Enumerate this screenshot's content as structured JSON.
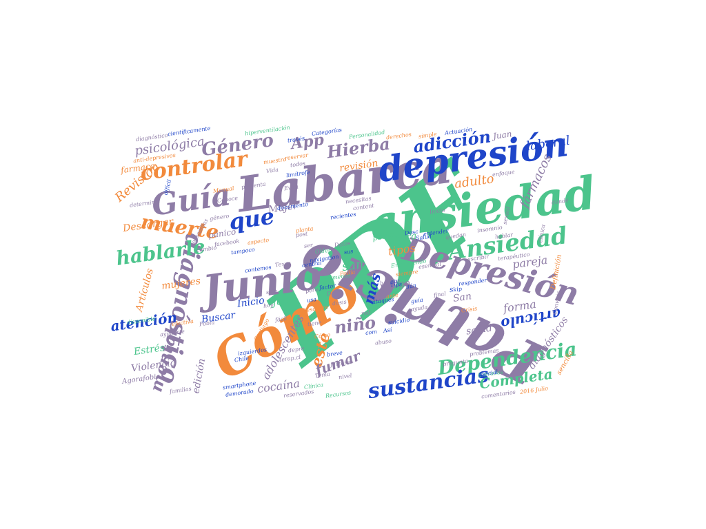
{
  "colors": {
    "purple": "#8E7CA6",
    "green": "#4CC48C",
    "orange": "#F28A3C",
    "blue": "#1F45C9"
  },
  "words": [
    {
      "text": "PDF",
      "color": "green"
    },
    {
      "text": "Labarca",
      "color": "purple"
    },
    {
      "text": "ansiedad",
      "color": "green"
    },
    {
      "text": "depresión",
      "color": "blue"
    },
    {
      "text": "Cómo",
      "color": "orange"
    },
    {
      "text": "Junio",
      "color": "purple"
    },
    {
      "text": "Patricio",
      "color": "purple"
    },
    {
      "text": "Guía",
      "color": "purple"
    },
    {
      "text": "Ansiedad",
      "color": "green"
    },
    {
      "text": "Depresión",
      "color": "purple"
    },
    {
      "text": "Dependencia",
      "color": "green"
    },
    {
      "text": "sustancias",
      "color": "blue"
    },
    {
      "text": "diagnóstico",
      "color": "purple"
    },
    {
      "text": "controlar",
      "color": "orange"
    },
    {
      "text": "hablarle",
      "color": "green"
    },
    {
      "text": "muerte",
      "color": "orange"
    },
    {
      "text": "que",
      "color": "blue"
    },
    {
      "text": "Género",
      "color": "purple"
    },
    {
      "text": "Hierba",
      "color": "purple"
    },
    {
      "text": "adicción",
      "color": "blue"
    },
    {
      "text": "laboral",
      "color": "blue"
    },
    {
      "text": "psicológica",
      "color": "purple"
    },
    {
      "text": "App",
      "color": "purple"
    },
    {
      "text": "Juan",
      "color": "purple"
    },
    {
      "text": "revisión",
      "color": "orange"
    },
    {
      "text": "adulto",
      "color": "orange"
    },
    {
      "text": "fármacos",
      "color": "purple"
    },
    {
      "text": "mental",
      "color": "purple"
    },
    {
      "text": "niño",
      "color": "purple"
    },
    {
      "text": "artículo",
      "color": "blue"
    },
    {
      "text": "este",
      "color": "orange"
    },
    {
      "text": "hora",
      "color": "green"
    },
    {
      "text": "tipos",
      "color": "orange"
    },
    {
      "text": "san",
      "color": "green"
    },
    {
      "text": "juan",
      "color": "green"
    },
    {
      "text": "riesgo",
      "color": "purple"
    },
    {
      "text": "más",
      "color": "blue"
    },
    {
      "text": "pareja",
      "color": "purple"
    },
    {
      "text": "forma",
      "color": "purple"
    },
    {
      "text": "San",
      "color": "purple"
    },
    {
      "text": "salud",
      "color": "purple"
    },
    {
      "text": "diagnósticos",
      "color": "purple"
    },
    {
      "text": "Completa",
      "color": "green"
    },
    {
      "text": "cocaína",
      "color": "purple"
    },
    {
      "text": "Violencia",
      "color": "purple"
    },
    {
      "text": "Estrés",
      "color": "green"
    },
    {
      "text": "atención",
      "color": "blue"
    },
    {
      "text": "mujeres",
      "color": "orange"
    },
    {
      "text": "Inicio",
      "color": "blue"
    },
    {
      "text": "Buscar",
      "color": "blue"
    },
    {
      "text": "Descargar",
      "color": "orange"
    },
    {
      "text": "Revisión",
      "color": "orange"
    },
    {
      "text": "farmaco",
      "color": "orange"
    },
    {
      "text": "Artículos",
      "color": "orange"
    },
    {
      "text": "fumar",
      "color": "purple"
    },
    {
      "text": "adolescentes",
      "color": "purple"
    },
    {
      "text": "Mujer",
      "color": "purple"
    },
    {
      "text": "psico",
      "color": "green"
    },
    {
      "text": "pánico",
      "color": "purple"
    },
    {
      "text": "Definición",
      "color": "orange"
    },
    {
      "text": "sencilla",
      "color": "orange"
    },
    {
      "text": "edición",
      "color": "purple"
    },
    {
      "text": "Agorafobia",
      "color": "purple"
    },
    {
      "text": "Chile",
      "color": "blue"
    },
    {
      "text": "Entradas",
      "color": "green"
    },
    {
      "text": "comentarios",
      "color": "purple"
    },
    {
      "text": "2016 Julio",
      "color": "orange"
    },
    {
      "text": "Categorías",
      "color": "blue"
    },
    {
      "text": "Personalidad",
      "color": "green"
    },
    {
      "text": "derechos",
      "color": "orange"
    },
    {
      "text": "simple",
      "color": "orange"
    },
    {
      "text": "Actuación",
      "color": "blue"
    },
    {
      "text": "científicamente",
      "color": "blue"
    },
    {
      "text": "diagnóstico",
      "color": "purple"
    },
    {
      "text": "hiperventilación",
      "color": "green"
    },
    {
      "text": "anti-depresivos",
      "color": "orange"
    },
    {
      "text": "Manual",
      "color": "orange"
    },
    {
      "text": "limítrofe",
      "color": "blue"
    },
    {
      "text": "enfoque",
      "color": "purple"
    },
    {
      "text": "Conoce",
      "color": "purple"
    },
    {
      "text": "difícil",
      "color": "blue"
    },
    {
      "text": "determina",
      "color": "purple"
    },
    {
      "text": "navigation",
      "color": "blue"
    },
    {
      "text": "Older",
      "color": "green"
    },
    {
      "text": "terapéutico",
      "color": "purple"
    },
    {
      "text": "facebook",
      "color": "purple"
    },
    {
      "text": "tampoco",
      "color": "blue"
    },
    {
      "text": "insomnio",
      "color": "purple"
    },
    {
      "text": "entender",
      "color": "blue"
    },
    {
      "text": "hablar",
      "color": "purple"
    },
    {
      "text": "Tips",
      "color": "blue"
    },
    {
      "text": "responder",
      "color": "blue"
    },
    {
      "text": "Skip",
      "color": "blue"
    },
    {
      "text": "ataques",
      "color": "blue"
    },
    {
      "text": "suicidio",
      "color": "blue"
    },
    {
      "text": "esencial",
      "color": "purple"
    },
    {
      "text": "Entendiendo",
      "color": "green"
    },
    {
      "text": "factores",
      "color": "purple"
    },
    {
      "text": "Clínica",
      "color": "green"
    },
    {
      "text": "Recursos",
      "color": "green"
    },
    {
      "text": "problemas",
      "color": "purple"
    },
    {
      "text": "social",
      "color": "blue"
    },
    {
      "text": "Crisis",
      "color": "orange"
    },
    {
      "text": "Fobia",
      "color": "purple"
    },
    {
      "text": "ayudarte",
      "color": "purple"
    },
    {
      "text": "familias",
      "color": "purple"
    },
    {
      "text": "smartphone",
      "color": "blue"
    },
    {
      "text": "demorado",
      "color": "blue"
    },
    {
      "text": "reservados",
      "color": "purple"
    },
    {
      "text": "contemos",
      "color": "blue"
    },
    {
      "text": "izquierdos",
      "color": "blue"
    },
    {
      "text": "documento",
      "color": "blue"
    },
    {
      "text": "presenta",
      "color": "purple"
    },
    {
      "text": "reservar",
      "color": "orange"
    },
    {
      "text": "recientes",
      "color": "blue"
    },
    {
      "text": "necesitas",
      "color": "purple"
    },
    {
      "text": "content",
      "color": "purple"
    },
    {
      "text": "Salud",
      "color": "blue"
    },
    {
      "text": "pregunta",
      "color": "purple"
    },
    {
      "text": "breve",
      "color": "blue"
    },
    {
      "text": "terap.cl",
      "color": "purple"
    },
    {
      "text": "Texas",
      "color": "purple"
    },
    {
      "text": "central",
      "color": "blue"
    },
    {
      "text": "factor",
      "color": "blue"
    },
    {
      "text": "Podía",
      "color": "orange"
    },
    {
      "text": "hábitos",
      "color": "purple"
    },
    {
      "text": "Descubre",
      "color": "orange"
    },
    {
      "text": "fácil",
      "color": "purple"
    },
    {
      "text": "depre",
      "color": "purple"
    },
    {
      "text": "Desc",
      "color": "blue"
    },
    {
      "text": "sexual",
      "color": "purple"
    },
    {
      "text": "efectiva",
      "color": "orange"
    },
    {
      "text": "dondé",
      "color": "purple"
    },
    {
      "text": "clínica",
      "color": "purple"
    },
    {
      "text": "través",
      "color": "blue"
    },
    {
      "text": "todos",
      "color": "purple"
    },
    {
      "text": "muestra",
      "color": "orange"
    },
    {
      "text": "cambio",
      "color": "purple"
    },
    {
      "text": "planta",
      "color": "orange"
    },
    {
      "text": "guía",
      "color": "blue"
    },
    {
      "text": "ayuda",
      "color": "purple"
    },
    {
      "text": "vez",
      "color": "purple"
    },
    {
      "text": "menos",
      "color": "green"
    },
    {
      "text": "disponible",
      "color": "green"
    },
    {
      "text": "Santiago",
      "color": "orange"
    },
    {
      "text": "quedan",
      "color": "purple"
    },
    {
      "text": "siempre",
      "color": "orange"
    },
    {
      "text": "escribir",
      "color": "purple"
    },
    {
      "text": "género",
      "color": "purple"
    },
    {
      "text": "aún",
      "color": "blue"
    },
    {
      "text": "ante",
      "color": "orange"
    },
    {
      "text": "Así",
      "color": "blue"
    },
    {
      "text": "pesadillas",
      "color": "purple"
    },
    {
      "text": "Convivir",
      "color": "purple"
    },
    {
      "text": "aspecto",
      "color": "orange"
    },
    {
      "text": "post",
      "color": "purple"
    },
    {
      "text": "usa",
      "color": "blue"
    },
    {
      "text": "sus",
      "color": "blue"
    },
    {
      "text": "com",
      "color": "blue"
    },
    {
      "text": "etc",
      "color": "blue"
    },
    {
      "text": "Vida",
      "color": "purple"
    },
    {
      "text": "Evita",
      "color": "purple"
    },
    {
      "text": "Cómo",
      "color": "orange"
    },
    {
      "text": "Datos",
      "color": "purple"
    },
    {
      "text": "dosis",
      "color": "purple"
    },
    {
      "text": "ser",
      "color": "purple"
    },
    {
      "text": "pero",
      "color": "purple"
    },
    {
      "text": "Dado",
      "color": "purple"
    },
    {
      "text": "abuso",
      "color": "purple"
    },
    {
      "text": "final",
      "color": "purple"
    },
    {
      "text": "red",
      "color": "purple"
    },
    {
      "text": "tiene",
      "color": "purple"
    },
    {
      "text": "solo",
      "color": "purple"
    },
    {
      "text": "hoy",
      "color": "purple"
    },
    {
      "text": "Inicio",
      "color": "purple"
    },
    {
      "text": "Tema",
      "color": "purple"
    },
    {
      "text": "nivel",
      "color": "purple"
    }
  ]
}
